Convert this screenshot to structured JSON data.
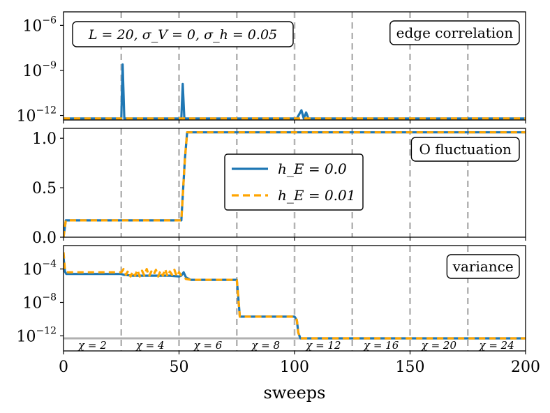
{
  "chart_data": [
    {
      "type": "line",
      "panel": "top",
      "label": "edge correlation",
      "yscale": "log",
      "yticks": [
        {
          "base": "10",
          "exp": "-6"
        },
        {
          "base": "10",
          "exp": "-9"
        },
        {
          "base": "10",
          "exp": "-12"
        }
      ],
      "ylim_log10": [
        -12.3,
        -5.1
      ],
      "xlim": [
        0,
        200
      ],
      "annotation": "L = 20, σ_V = 0, σ_h = 0.05",
      "series": [
        {
          "name": "h_E = 0.0",
          "color": "#1f77b4",
          "style": "solid",
          "x": [
            0,
            25,
            25.6,
            26.3,
            27,
            51,
            51.6,
            52.3,
            53,
            101,
            103,
            104,
            105,
            106,
            107,
            200
          ],
          "log10y": [
            -12.2,
            -12.2,
            -8.6,
            -12.2,
            -12.2,
            -12.2,
            -9.9,
            -12.2,
            -12.2,
            -12.2,
            -11.65,
            -12.2,
            -11.8,
            -12.2,
            -12.2,
            -12.2
          ]
        },
        {
          "name": "h_E = 0.01",
          "color": "#ffa500",
          "style": "dashed",
          "x": [
            0,
            200
          ],
          "log10y": [
            -12.2,
            -12.2
          ]
        }
      ]
    },
    {
      "type": "line",
      "panel": "middle",
      "label": "O fluctuation",
      "yscale": "linear",
      "yticks": [
        "0.0",
        "0.5",
        "1.0"
      ],
      "ylim": [
        0,
        1.1
      ],
      "xlim": [
        0,
        200
      ],
      "series": [
        {
          "name": "h_E = 0.0",
          "color": "#1f77b4",
          "style": "solid",
          "x": [
            0,
            1,
            51,
            52.5,
            53.5,
            200
          ],
          "y": [
            0.0,
            0.17,
            0.17,
            0.78,
            1.06,
            1.06
          ]
        },
        {
          "name": "h_E = 0.01",
          "color": "#ffa500",
          "style": "dashed",
          "x": [
            0,
            1,
            51,
            52.5,
            53.5,
            200
          ],
          "y": [
            0.0,
            0.17,
            0.17,
            0.78,
            1.06,
            1.06
          ]
        }
      ]
    },
    {
      "type": "line",
      "panel": "bottom",
      "label": "variance",
      "yscale": "log",
      "yticks": [
        {
          "base": "10",
          "exp": "-4"
        },
        {
          "base": "10",
          "exp": "-8"
        },
        {
          "base": "10",
          "exp": "-12"
        }
      ],
      "ylim_log10": [
        -13.8,
        -1.2
      ],
      "xlim": [
        0,
        200
      ],
      "chi_labels": [
        "χ = 2",
        "χ = 4",
        "χ = 6",
        "χ = 8",
        "χ = 12",
        "χ = 16",
        "χ = 20",
        "χ = 24"
      ],
      "series": [
        {
          "name": "h_E = 0.0",
          "color": "#1f77b4",
          "style": "solid",
          "x": [
            0,
            0.6,
            1.2,
            25,
            26,
            30,
            34,
            38,
            42,
            46,
            50,
            51,
            52,
            53,
            55,
            75,
            75.6,
            76.3,
            100,
            101,
            101.6,
            102.5,
            200
          ],
          "log10y": [
            -2.6,
            -4.3,
            -4.6,
            -4.6,
            -4.7,
            -4.8,
            -4.8,
            -4.8,
            -4.8,
            -4.8,
            -4.9,
            -4.8,
            -4.4,
            -5.0,
            -5.3,
            -5.3,
            -7.2,
            -9.7,
            -9.7,
            -10.1,
            -11.6,
            -12.3,
            -12.3
          ]
        },
        {
          "name": "h_E = 0.01",
          "color": "#ffa500",
          "style": "dashed",
          "x": [
            0,
            0.6,
            1.2,
            25,
            26,
            27,
            28,
            29,
            30,
            31,
            32,
            33,
            34,
            35,
            36,
            37,
            38,
            39,
            40,
            41,
            42,
            43,
            44,
            45,
            46,
            47,
            48,
            49,
            50,
            51,
            52,
            53,
            55,
            75,
            75.6,
            76.3,
            100,
            101,
            101.6,
            102.5,
            200
          ],
          "log10y": [
            -2.0,
            -4.0,
            -4.4,
            -4.4,
            -4.0,
            -4.7,
            -4.2,
            -4.9,
            -4.3,
            -4.8,
            -4.1,
            -4.9,
            -4.2,
            -4.8,
            -4.0,
            -4.9,
            -4.3,
            -4.7,
            -4.1,
            -4.9,
            -4.2,
            -4.8,
            -4.0,
            -4.9,
            -4.3,
            -4.7,
            -4.1,
            -4.9,
            -4.4,
            -4.8,
            -4.9,
            -5.2,
            -5.3,
            -5.3,
            -7.2,
            -9.7,
            -9.7,
            -10.1,
            -11.6,
            -12.3,
            -12.3
          ]
        },
        {
          "name": "floor",
          "color": "#b0b0b0",
          "style": "solid",
          "x": [
            0,
            200
          ],
          "log10y": [
            -12.3,
            -12.3
          ]
        }
      ]
    }
  ],
  "shared": {
    "xlabel": "sweeps",
    "xticks": [
      "0",
      "50",
      "100",
      "150",
      "200"
    ],
    "xtick_values": [
      0,
      50,
      100,
      150,
      200
    ],
    "vlines": [
      25,
      50,
      75,
      100,
      125,
      150,
      175
    ],
    "legend": [
      {
        "label": "h_E = 0.0",
        "color": "#1f77b4",
        "style": "solid"
      },
      {
        "label": "h_E = 0.01",
        "color": "#ffa500",
        "style": "dashed"
      }
    ]
  }
}
